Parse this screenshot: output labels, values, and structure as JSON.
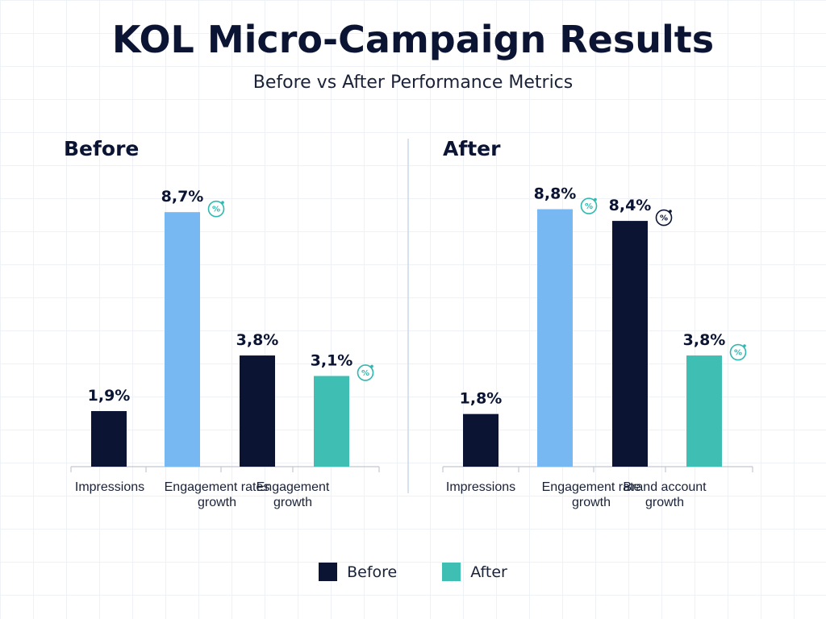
{
  "title": "KOL Micro-Campaign Results",
  "subtitle": "Before vs After Performance Metrics",
  "colors": {
    "navy": "#0b1533",
    "light_blue": "#77b8f2",
    "teal": "#3fbfb3",
    "badge_teal": "#2fb8ad",
    "badge_dark": "#0b1533"
  },
  "legend": [
    {
      "label": "Before",
      "color": "#0b1533"
    },
    {
      "label": "After",
      "color": "#3fbfb3"
    }
  ],
  "chart_data": [
    {
      "type": "bar",
      "title": "Before",
      "categories": [
        "Impressions",
        "Engagement rates growth",
        "Engagement growth"
      ],
      "bars": [
        {
          "category": "Impressions",
          "value": 1.9,
          "label": "1,9%",
          "color": "#0b1533",
          "badge": null
        },
        {
          "category": "Engagement rates growth",
          "value": 8.7,
          "label": "8,7%",
          "color": "#77b8f2",
          "badge": "teal"
        },
        {
          "category": "Engagement rates growth",
          "value": 3.8,
          "label": "3,8%",
          "color": "#0b1533",
          "badge": null
        },
        {
          "category": "Engagement growth",
          "value": 3.1,
          "label": "3,1%",
          "color": "#3fbfb3",
          "badge": "teal"
        }
      ],
      "category_label_lines": [
        [
          "Impressions"
        ],
        [
          "Engagement rates",
          "growth"
        ],
        [
          "Engagement",
          "growth"
        ]
      ],
      "grid": true
    },
    {
      "type": "bar",
      "title": "After",
      "categories": [
        "Impressions",
        "Engagement rate growth",
        "Brand account growth"
      ],
      "bars": [
        {
          "category": "Impressions",
          "value": 1.8,
          "label": "1,8%",
          "color": "#0b1533",
          "badge": null
        },
        {
          "category": "Engagement rate growth",
          "value": 8.8,
          "label": "8,8%",
          "color": "#77b8f2",
          "badge": "teal"
        },
        {
          "category": "Engagement rate growth",
          "value": 8.4,
          "label": "8,4%",
          "color": "#0b1533",
          "badge": "dark"
        },
        {
          "category": "Brand account growth",
          "value": 3.8,
          "label": "3,8%",
          "color": "#3fbfb3",
          "badge": "teal"
        }
      ],
      "category_label_lines": [
        [
          "Impressions"
        ],
        [
          "Engagement rate",
          "growth"
        ],
        [
          "Brand account",
          "growth"
        ]
      ],
      "grid": true
    }
  ]
}
